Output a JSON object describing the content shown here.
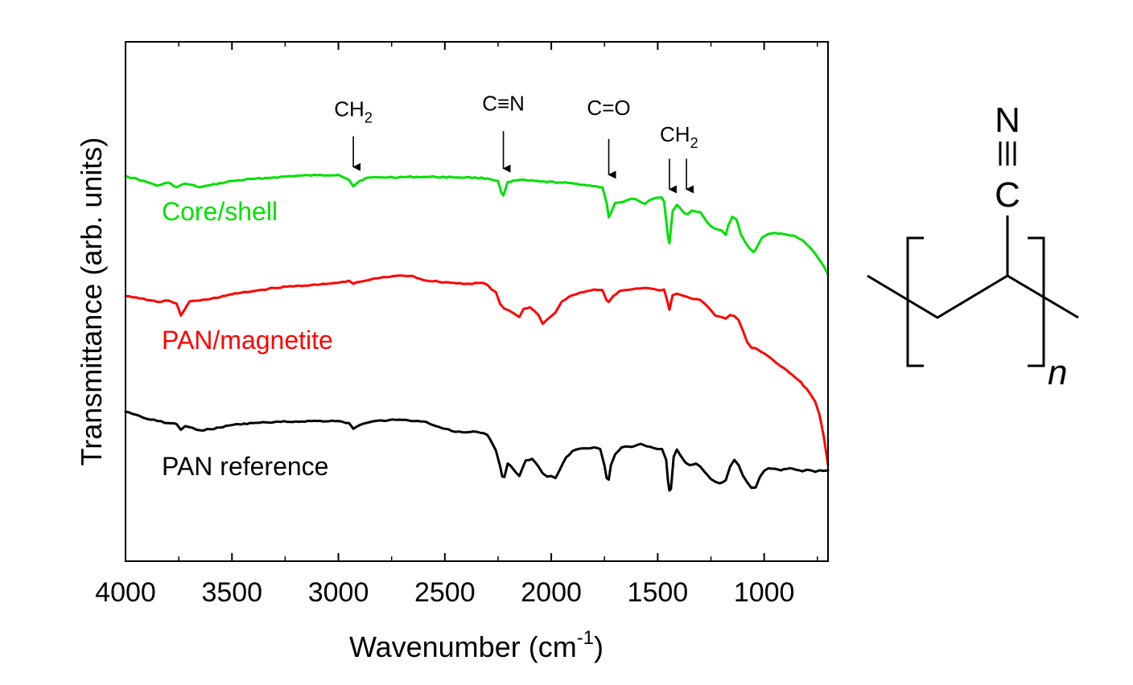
{
  "chart_data": {
    "type": "line",
    "title": "",
    "xlabel": "Wavenumber (cm",
    "xlabel_sup": "-1",
    "xlabel_end": ")",
    "ylabel": "Transmittance (arb. units)",
    "xlim": [
      4000,
      700
    ],
    "ylim": [
      0,
      100
    ],
    "x_reversed": true,
    "grid": false,
    "xticks": [
      4000,
      3500,
      3000,
      2500,
      2000,
      1500,
      1000
    ],
    "xtick_labels": [
      "4000",
      "3500",
      "3000",
      "2500",
      "2000",
      "1500",
      "1000"
    ],
    "series": [
      {
        "name": "Core/shell",
        "color": "#00e000",
        "points": [
          [
            4000,
            74.2
          ],
          [
            3900,
            73.0
          ],
          [
            3850,
            72.3
          ],
          [
            3800,
            72.9
          ],
          [
            3760,
            72.0
          ],
          [
            3720,
            72.7
          ],
          [
            3650,
            72.0
          ],
          [
            3600,
            72.4
          ],
          [
            3500,
            73.2
          ],
          [
            3400,
            73.6
          ],
          [
            3300,
            73.9
          ],
          [
            3200,
            74.2
          ],
          [
            3100,
            74.3
          ],
          [
            3000,
            74.4
          ],
          [
            2950,
            73.4
          ],
          [
            2930,
            72.2
          ],
          [
            2900,
            73.2
          ],
          [
            2870,
            73.8
          ],
          [
            2800,
            73.9
          ],
          [
            2600,
            74.0
          ],
          [
            2400,
            73.9
          ],
          [
            2300,
            73.7
          ],
          [
            2250,
            73.2
          ],
          [
            2235,
            71.0
          ],
          [
            2225,
            70.4
          ],
          [
            2205,
            73.0
          ],
          [
            2150,
            73.4
          ],
          [
            2050,
            73.1
          ],
          [
            1950,
            72.9
          ],
          [
            1850,
            72.5
          ],
          [
            1760,
            72.0
          ],
          [
            1740,
            69.0
          ],
          [
            1730,
            66.2
          ],
          [
            1715,
            67.5
          ],
          [
            1700,
            69.0
          ],
          [
            1660,
            69.2
          ],
          [
            1620,
            69.8
          ],
          [
            1590,
            69.4
          ],
          [
            1560,
            68.8
          ],
          [
            1520,
            69.8
          ],
          [
            1480,
            70.0
          ],
          [
            1470,
            69.2
          ],
          [
            1452,
            62.5
          ],
          [
            1445,
            61.2
          ],
          [
            1430,
            67.4
          ],
          [
            1410,
            68.6
          ],
          [
            1395,
            68.0
          ],
          [
            1375,
            67.0
          ],
          [
            1360,
            66.8
          ],
          [
            1340,
            67.5
          ],
          [
            1320,
            67.3
          ],
          [
            1300,
            67.2
          ],
          [
            1280,
            66.0
          ],
          [
            1250,
            64.5
          ],
          [
            1230,
            64.0
          ],
          [
            1200,
            63.7
          ],
          [
            1180,
            62.8
          ],
          [
            1170,
            64.5
          ],
          [
            1150,
            66.3
          ],
          [
            1130,
            65.8
          ],
          [
            1120,
            64.5
          ],
          [
            1110,
            63.0
          ],
          [
            1090,
            61.5
          ],
          [
            1070,
            60.3
          ],
          [
            1050,
            59.5
          ],
          [
            1040,
            60.0
          ],
          [
            1010,
            62.3
          ],
          [
            980,
            63.0
          ],
          [
            950,
            63.2
          ],
          [
            920,
            63.1
          ],
          [
            880,
            62.7
          ],
          [
            850,
            62.5
          ],
          [
            820,
            61.8
          ],
          [
            800,
            61.0
          ],
          [
            780,
            60.2
          ],
          [
            760,
            59.2
          ],
          [
            740,
            58.0
          ],
          [
            720,
            56.8
          ],
          [
            700,
            55.2
          ]
        ]
      },
      {
        "name": "PAN/magnetite",
        "color": "#ff0000",
        "points": [
          [
            4000,
            51.0
          ],
          [
            3950,
            50.8
          ],
          [
            3900,
            50.3
          ],
          [
            3850,
            49.9
          ],
          [
            3800,
            50.2
          ],
          [
            3760,
            49.6
          ],
          [
            3740,
            47.3
          ],
          [
            3720,
            48.6
          ],
          [
            3700,
            50.0
          ],
          [
            3650,
            50.2
          ],
          [
            3600,
            50.5
          ],
          [
            3500,
            51.4
          ],
          [
            3400,
            52.0
          ],
          [
            3300,
            52.6
          ],
          [
            3200,
            53.0
          ],
          [
            3100,
            53.2
          ],
          [
            3000,
            53.6
          ],
          [
            2950,
            54.0
          ],
          [
            2930,
            53.4
          ],
          [
            2900,
            53.8
          ],
          [
            2850,
            54.2
          ],
          [
            2800,
            54.6
          ],
          [
            2700,
            55.0
          ],
          [
            2650,
            54.9
          ],
          [
            2600,
            54.1
          ],
          [
            2500,
            53.7
          ],
          [
            2400,
            53.4
          ],
          [
            2330,
            53.6
          ],
          [
            2300,
            53.2
          ],
          [
            2280,
            52.3
          ],
          [
            2260,
            51.8
          ],
          [
            2240,
            49.5
          ],
          [
            2220,
            48.6
          ],
          [
            2200,
            48.3
          ],
          [
            2180,
            47.8
          ],
          [
            2150,
            47.0
          ],
          [
            2130,
            48.6
          ],
          [
            2100,
            48.9
          ],
          [
            2080,
            48.2
          ],
          [
            2060,
            47.4
          ],
          [
            2040,
            45.7
          ],
          [
            2020,
            46.5
          ],
          [
            2000,
            47.2
          ],
          [
            1980,
            47.9
          ],
          [
            1950,
            50.0
          ],
          [
            1900,
            51.2
          ],
          [
            1850,
            51.8
          ],
          [
            1800,
            52.3
          ],
          [
            1760,
            52.2
          ],
          [
            1740,
            50.2
          ],
          [
            1730,
            49.9
          ],
          [
            1710,
            51.0
          ],
          [
            1680,
            52.0
          ],
          [
            1650,
            52.2
          ],
          [
            1600,
            52.5
          ],
          [
            1550,
            52.6
          ],
          [
            1500,
            52.2
          ],
          [
            1470,
            52.3
          ],
          [
            1452,
            49.6
          ],
          [
            1445,
            48.4
          ],
          [
            1430,
            51.2
          ],
          [
            1410,
            51.5
          ],
          [
            1380,
            51.1
          ],
          [
            1350,
            50.7
          ],
          [
            1300,
            50.3
          ],
          [
            1280,
            49.6
          ],
          [
            1250,
            48.3
          ],
          [
            1230,
            47.3
          ],
          [
            1200,
            47.0
          ],
          [
            1180,
            46.7
          ],
          [
            1160,
            47.4
          ],
          [
            1140,
            47.2
          ],
          [
            1120,
            46.4
          ],
          [
            1100,
            44.4
          ],
          [
            1080,
            42.2
          ],
          [
            1060,
            41.1
          ],
          [
            1040,
            41.0
          ],
          [
            1000,
            40.0
          ],
          [
            960,
            38.8
          ],
          [
            920,
            37.5
          ],
          [
            880,
            36.2
          ],
          [
            840,
            34.9
          ],
          [
            800,
            33.2
          ],
          [
            780,
            32.0
          ],
          [
            760,
            30.7
          ],
          [
            740,
            28.2
          ],
          [
            720,
            24.0
          ],
          [
            700,
            18.5
          ]
        ]
      },
      {
        "name": "PAN reference",
        "color": "#000000",
        "points": [
          [
            4000,
            28.8
          ],
          [
            3950,
            28.2
          ],
          [
            3900,
            27.4
          ],
          [
            3850,
            27.0
          ],
          [
            3800,
            26.6
          ],
          [
            3760,
            26.4
          ],
          [
            3740,
            25.3
          ],
          [
            3720,
            26.0
          ],
          [
            3700,
            25.8
          ],
          [
            3650,
            25.2
          ],
          [
            3600,
            25.4
          ],
          [
            3500,
            26.2
          ],
          [
            3400,
            26.6
          ],
          [
            3300,
            26.8
          ],
          [
            3200,
            26.9
          ],
          [
            3100,
            27.0
          ],
          [
            3000,
            27.0
          ],
          [
            2950,
            26.6
          ],
          [
            2930,
            25.5
          ],
          [
            2900,
            26.2
          ],
          [
            2850,
            26.8
          ],
          [
            2800,
            27.1
          ],
          [
            2700,
            27.2
          ],
          [
            2600,
            26.9
          ],
          [
            2500,
            25.5
          ],
          [
            2450,
            24.9
          ],
          [
            2400,
            24.8
          ],
          [
            2350,
            24.9
          ],
          [
            2300,
            24.3
          ],
          [
            2260,
            21.3
          ],
          [
            2240,
            18.2
          ],
          [
            2230,
            16.3
          ],
          [
            2220,
            16.2
          ],
          [
            2205,
            18.8
          ],
          [
            2180,
            17.8
          ],
          [
            2150,
            16.4
          ],
          [
            2120,
            19.4
          ],
          [
            2090,
            19.7
          ],
          [
            2060,
            18.2
          ],
          [
            2040,
            16.9
          ],
          [
            2020,
            16.3
          ],
          [
            2000,
            16.4
          ],
          [
            1980,
            16.0
          ],
          [
            1960,
            17.6
          ],
          [
            1930,
            20.0
          ],
          [
            1900,
            21.2
          ],
          [
            1860,
            21.7
          ],
          [
            1800,
            21.9
          ],
          [
            1770,
            21.6
          ],
          [
            1750,
            18.4
          ],
          [
            1740,
            16.0
          ],
          [
            1730,
            15.7
          ],
          [
            1720,
            18.5
          ],
          [
            1700,
            20.6
          ],
          [
            1670,
            21.9
          ],
          [
            1650,
            22.1
          ],
          [
            1620,
            22.0
          ],
          [
            1600,
            22.3
          ],
          [
            1580,
            22.6
          ],
          [
            1550,
            22.1
          ],
          [
            1500,
            21.6
          ],
          [
            1480,
            21.6
          ],
          [
            1460,
            19.5
          ],
          [
            1452,
            15.5
          ],
          [
            1445,
            13.6
          ],
          [
            1438,
            13.9
          ],
          [
            1425,
            20.1
          ],
          [
            1410,
            21.5
          ],
          [
            1395,
            20.5
          ],
          [
            1370,
            19.0
          ],
          [
            1350,
            18.5
          ],
          [
            1320,
            18.8
          ],
          [
            1300,
            18.2
          ],
          [
            1280,
            17.2
          ],
          [
            1250,
            15.8
          ],
          [
            1230,
            15.3
          ],
          [
            1210,
            15.0
          ],
          [
            1180,
            15.6
          ],
          [
            1160,
            18.2
          ],
          [
            1140,
            19.5
          ],
          [
            1120,
            18.5
          ],
          [
            1100,
            16.5
          ],
          [
            1080,
            15.2
          ],
          [
            1060,
            14.1
          ],
          [
            1040,
            14.2
          ],
          [
            1020,
            16.2
          ],
          [
            1000,
            17.4
          ],
          [
            980,
            17.9
          ],
          [
            950,
            17.8
          ],
          [
            920,
            17.5
          ],
          [
            880,
            17.9
          ],
          [
            850,
            17.6
          ],
          [
            820,
            17.3
          ],
          [
            800,
            17.6
          ],
          [
            780,
            17.5
          ],
          [
            760,
            17.2
          ],
          [
            740,
            17.5
          ],
          [
            720,
            17.4
          ],
          [
            700,
            17.5
          ]
        ]
      }
    ],
    "series_labels": [
      {
        "text": "Core/shell",
        "color": "#00e000",
        "x": 3830,
        "y": 65.6
      },
      {
        "text": "PAN/magnetite",
        "color": "#ff0000",
        "x": 3830,
        "y": 40.9
      },
      {
        "text": "PAN reference",
        "color": "#000000",
        "x": 3830,
        "y": 16.6
      }
    ],
    "annotations": [
      {
        "label": "CH",
        "sub": "2",
        "x": 2930,
        "y_text": 85.7,
        "y_arrow_start": 81.8,
        "y_arrow_end": 74.5
      },
      {
        "label": "C≡N",
        "sub": "",
        "x": 2225,
        "y_text": 86.8,
        "y_arrow_start": 82.8,
        "y_arrow_end": 74.2
      },
      {
        "label": "C=O",
        "sub": "",
        "x": 1730,
        "y_text": 85.9,
        "y_arrow_start": 81.3,
        "y_arrow_end": 73.0
      },
      {
        "label": "CH",
        "sub": "2",
        "x": 1400,
        "y_text": 80.8,
        "y_arrow_start": 77.5,
        "y_arrow_end": 70.2,
        "arrows": [
          1445,
          1365
        ]
      }
    ]
  },
  "structure": {
    "atom_top": "N",
    "atom_mid": "C",
    "subscript": "n"
  }
}
